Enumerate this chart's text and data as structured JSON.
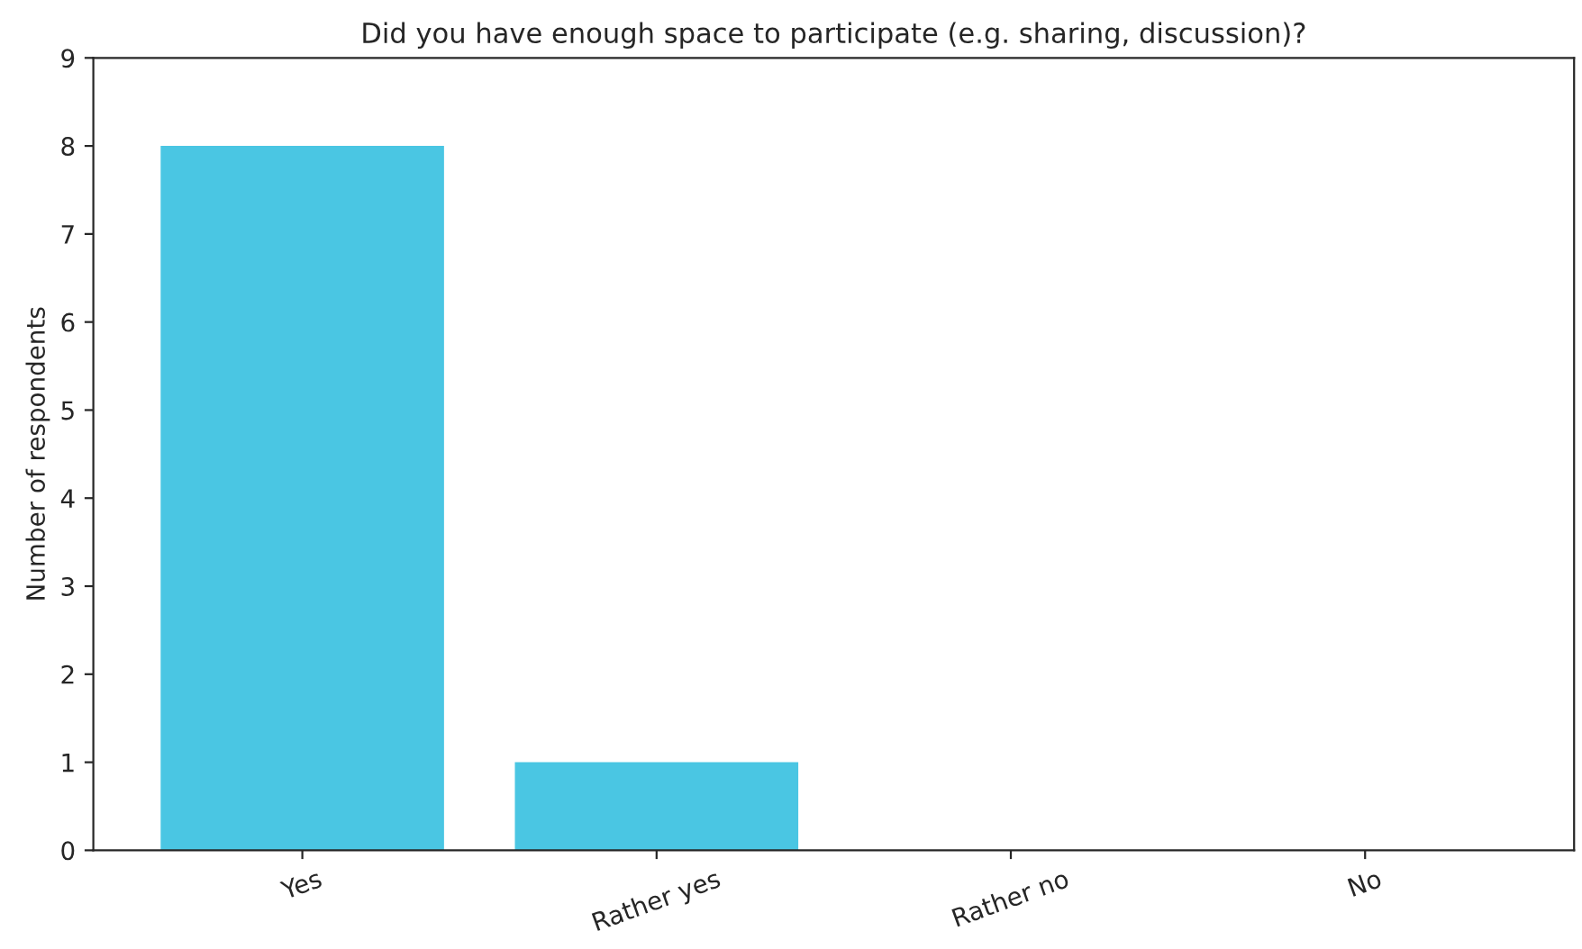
{
  "chart_data": {
    "type": "bar",
    "title": "Did you have enough space to participate (e.g. sharing, discussion)?",
    "ylabel": "Number of respondents",
    "categories": [
      "Yes",
      "Rather yes",
      "Rather no",
      "No"
    ],
    "values": [
      8,
      1,
      0,
      0
    ],
    "color": "#4ac6e3",
    "ylim": [
      0,
      9
    ],
    "yticks": [
      0,
      1,
      2,
      3,
      4,
      5,
      6,
      7,
      8,
      9
    ],
    "grid": false
  }
}
